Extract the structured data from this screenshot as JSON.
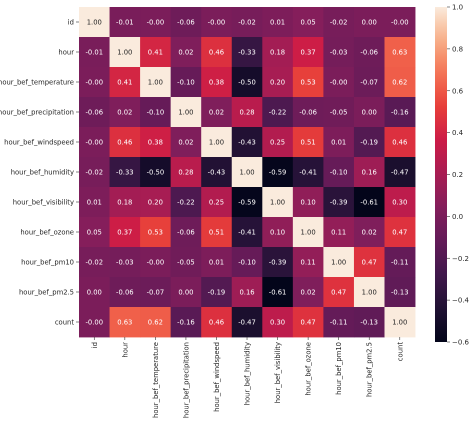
{
  "chart_data": {
    "type": "heatmap",
    "title": "",
    "xlabel": "",
    "ylabel": "",
    "labels": [
      "id",
      "hour",
      "hour_bef_temperature",
      "hour_bef_precipitation",
      "hour_bef_windspeed",
      "hour_bef_humidity",
      "hour_bef_visibility",
      "hour_bef_ozone",
      "hour_bef_pm10",
      "hour_bef_pm2.5",
      "count"
    ],
    "matrix": [
      [
        1.0,
        -0.01,
        -0.0,
        -0.06,
        -0.0,
        -0.02,
        0.01,
        0.05,
        -0.02,
        0.0,
        -0.0
      ],
      [
        -0.01,
        1.0,
        0.41,
        0.02,
        0.46,
        -0.33,
        0.18,
        0.37,
        -0.03,
        -0.06,
        0.63
      ],
      [
        -0.0,
        0.41,
        1.0,
        -0.1,
        0.38,
        -0.5,
        0.2,
        0.53,
        -0.0,
        -0.07,
        0.62
      ],
      [
        -0.06,
        0.02,
        -0.1,
        1.0,
        0.02,
        0.28,
        -0.22,
        -0.06,
        -0.05,
        0.0,
        -0.16
      ],
      [
        -0.0,
        0.46,
        0.38,
        0.02,
        1.0,
        -0.43,
        0.25,
        0.51,
        0.01,
        -0.19,
        0.46
      ],
      [
        -0.02,
        -0.33,
        -0.5,
        0.28,
        -0.43,
        1.0,
        -0.59,
        -0.41,
        -0.1,
        0.16,
        -0.47
      ],
      [
        0.01,
        0.18,
        0.2,
        -0.22,
        0.25,
        -0.59,
        1.0,
        0.1,
        -0.39,
        -0.61,
        0.3
      ],
      [
        0.05,
        0.37,
        0.53,
        -0.06,
        0.51,
        -0.41,
        0.1,
        1.0,
        0.11,
        0.02,
        0.47
      ],
      [
        -0.02,
        -0.03,
        -0.0,
        -0.05,
        0.01,
        -0.1,
        -0.39,
        0.11,
        1.0,
        0.47,
        -0.11
      ],
      [
        0.0,
        -0.06,
        -0.07,
        0.0,
        -0.19,
        0.16,
        -0.61,
        0.02,
        0.47,
        1.0,
        -0.13
      ],
      [
        -0.0,
        0.63,
        0.62,
        -0.16,
        0.46,
        -0.47,
        0.3,
        0.47,
        -0.11,
        -0.13,
        1.0
      ]
    ],
    "color_range": [
      -0.6,
      1.0
    ],
    "colorbar_ticks": [
      "1.0",
      "0.8",
      "0.6",
      "0.4",
      "0.2",
      "0.0",
      "−0.2",
      "−0.4",
      "−0.6"
    ],
    "colormap": "rocket",
    "annotate": true,
    "legend": "colorbar-right",
    "grid": false
  }
}
